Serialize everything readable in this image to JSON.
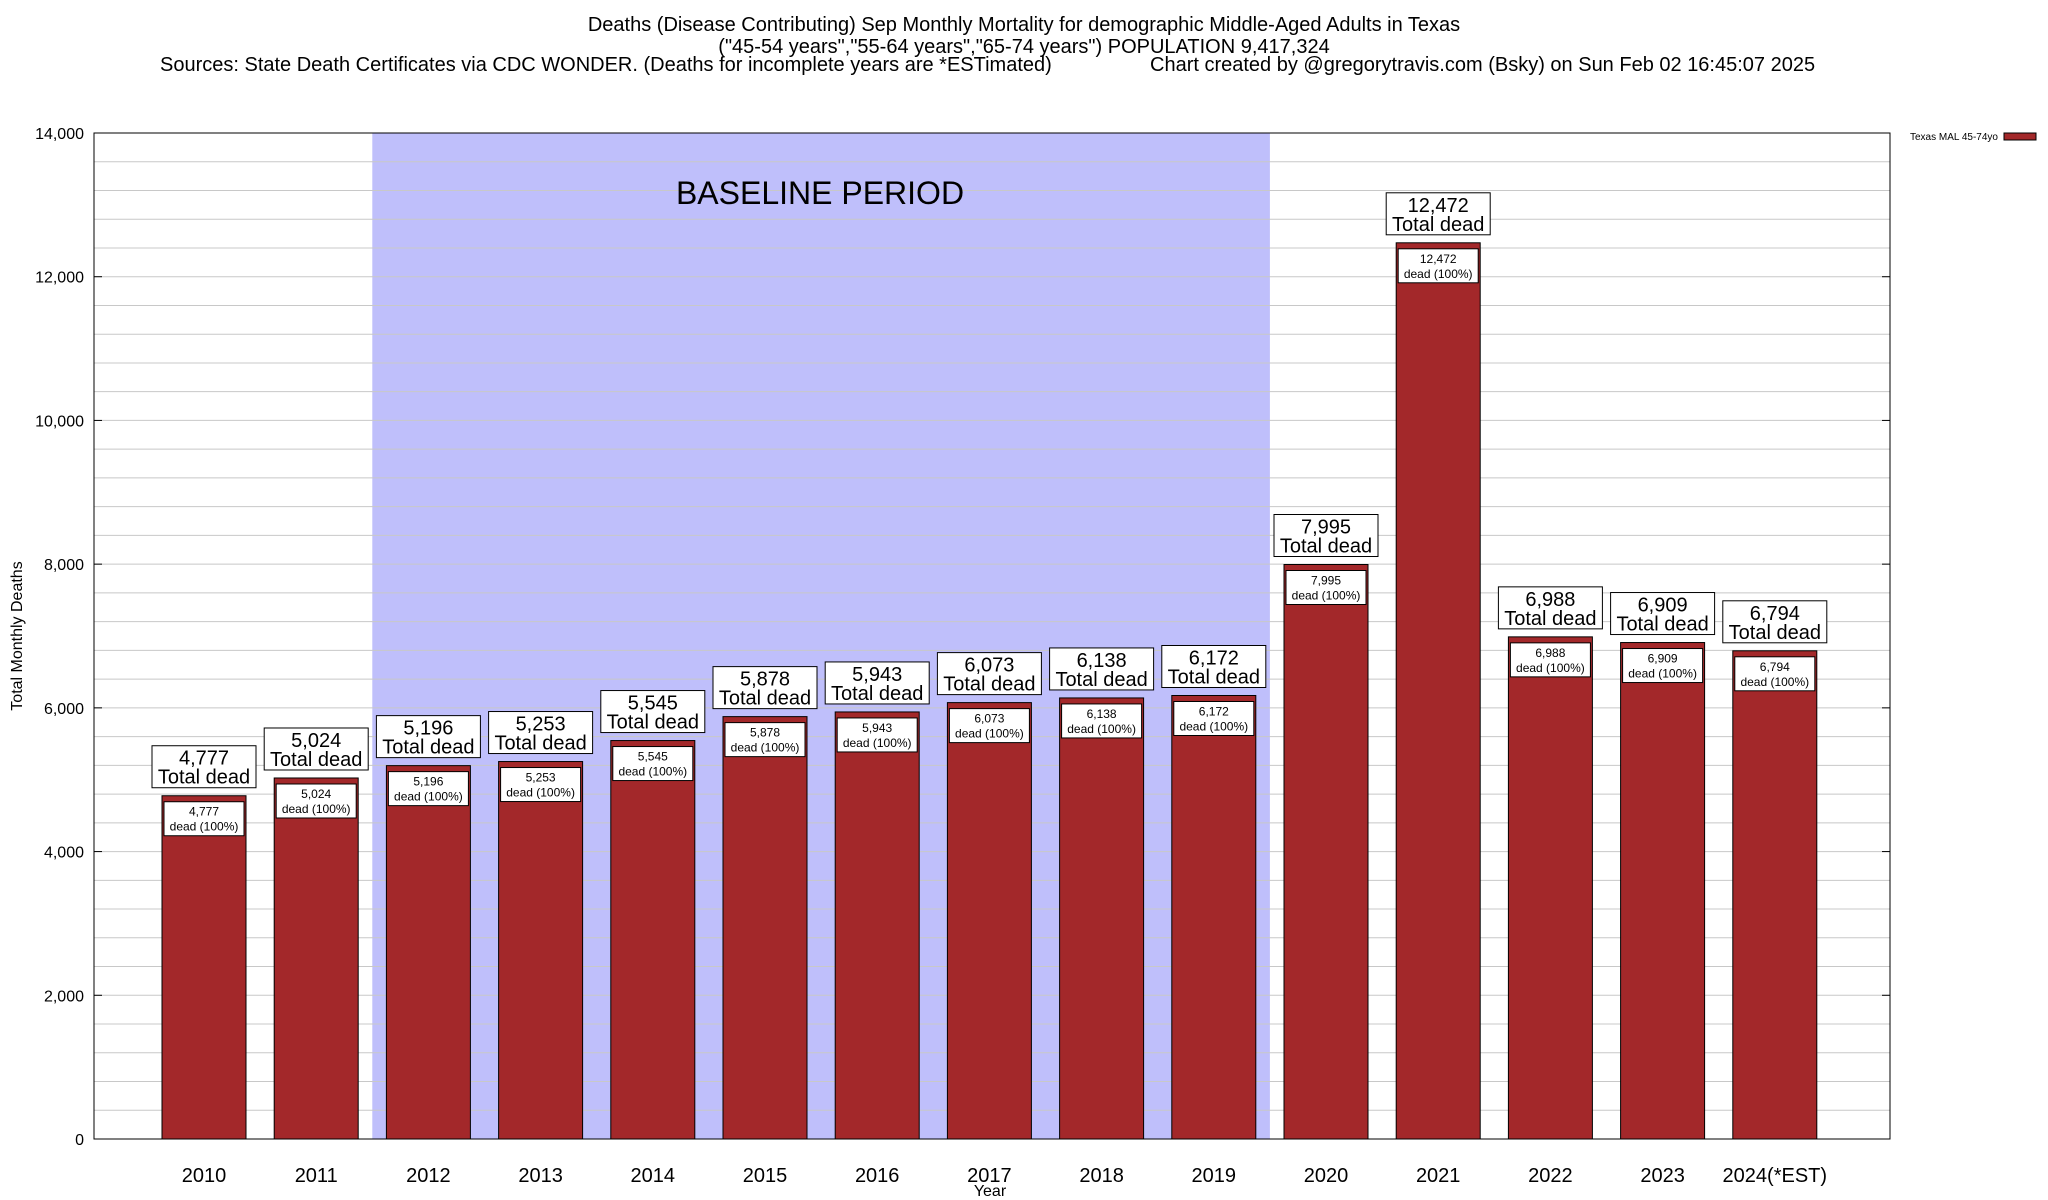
{
  "chart_data": {
    "type": "bar",
    "title": "Deaths (Disease Contributing) Sep Monthly Mortality for demographic Middle-Aged Adults in Texas",
    "subtitle": "(\"45-54 years\",\"55-64 years\",\"65-74 years\") POPULATION 9,417,324",
    "sources": "Sources: State Death Certificates via CDC WONDER. (Deaths for incomplete years are *ESTimated)",
    "credit": "Chart created by @gregorytravis.com (Bsky) on Sun Feb 02 16:45:07 2025",
    "xlabel": "Year",
    "ylabel": "Total Monthly Deaths",
    "ylim": [
      0,
      14000
    ],
    "yticks": [
      0,
      2000,
      4000,
      6000,
      8000,
      10000,
      12000,
      14000
    ],
    "ytick_labels": [
      "0",
      "2,000",
      "4,000",
      "6,000",
      "8,000",
      "10,000",
      "12,000",
      "14,000"
    ],
    "categories": [
      "2010",
      "2011",
      "2012",
      "2013",
      "2014",
      "2015",
      "2016",
      "2017",
      "2018",
      "2019",
      "2020",
      "2021",
      "2022",
      "2023",
      "2024(*EST)"
    ],
    "values": [
      4777,
      5024,
      5196,
      5253,
      5545,
      5878,
      5943,
      6073,
      6138,
      6172,
      7995,
      12472,
      6988,
      6909,
      6794
    ],
    "value_labels": [
      "4,777",
      "5,024",
      "5,196",
      "5,253",
      "5,545",
      "5,878",
      "5,943",
      "6,073",
      "6,138",
      "6,172",
      "7,995",
      "12,472",
      "6,988",
      "6,909",
      "6,794"
    ],
    "top_label_suffix": "Total dead",
    "inner_label_suffix": "dead (100%)",
    "legend": {
      "label": "Texas MAL 45-74yo",
      "placement": "top-right"
    },
    "baseline": {
      "label": "BASELINE PERIOD",
      "start": "2012",
      "end": "2019"
    },
    "colors": {
      "bar": "#a3282a",
      "baseline_fill": "#bfbffb",
      "grid": "#c8c8c8"
    },
    "grid": true
  }
}
